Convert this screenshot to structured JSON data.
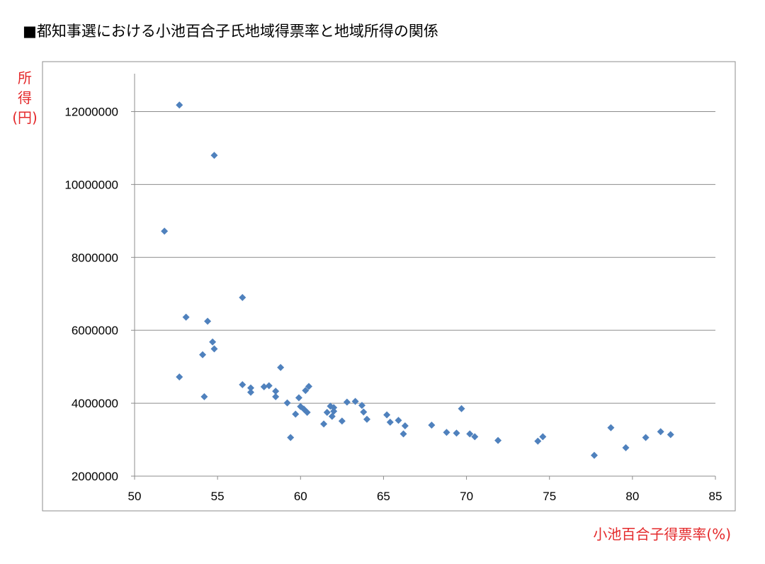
{
  "chart_data": {
    "type": "scatter",
    "title": "■都知事選における小池百合子氏地域得票率と地域所得の関係",
    "xlabel": "小池百合子得票率(%)",
    "ylabel": [
      "所",
      "得",
      "(円)"
    ],
    "xlim": [
      50,
      85
    ],
    "ylim": [
      2000000,
      13000000
    ],
    "xticks": [
      50,
      55,
      60,
      65,
      70,
      75,
      80,
      85
    ],
    "yticks": [
      2000000,
      4000000,
      6000000,
      8000000,
      10000000,
      12000000
    ],
    "grid": "horizontal",
    "legend": "none",
    "marker": "diamond",
    "color": "#4f81bd",
    "points": [
      [
        52.7,
        12180000
      ],
      [
        54.8,
        10800000
      ],
      [
        51.8,
        8720000
      ],
      [
        56.5,
        6900000
      ],
      [
        53.1,
        6360000
      ],
      [
        54.4,
        6250000
      ],
      [
        54.7,
        5680000
      ],
      [
        54.8,
        5490000
      ],
      [
        54.1,
        5330000
      ],
      [
        58.8,
        4980000
      ],
      [
        52.7,
        4720000
      ],
      [
        56.5,
        4510000
      ],
      [
        57.0,
        4420000
      ],
      [
        57.0,
        4300000
      ],
      [
        57.8,
        4450000
      ],
      [
        58.1,
        4480000
      ],
      [
        58.5,
        4330000
      ],
      [
        58.5,
        4180000
      ],
      [
        54.2,
        4180000
      ],
      [
        59.2,
        4010000
      ],
      [
        59.7,
        3700000
      ],
      [
        59.9,
        4150000
      ],
      [
        60.0,
        3910000
      ],
      [
        60.2,
        3840000
      ],
      [
        60.3,
        4350000
      ],
      [
        60.4,
        3750000
      ],
      [
        60.5,
        4460000
      ],
      [
        59.4,
        3060000
      ],
      [
        61.4,
        3430000
      ],
      [
        61.6,
        3750000
      ],
      [
        61.8,
        3920000
      ],
      [
        61.9,
        3640000
      ],
      [
        62.0,
        3780000
      ],
      [
        62.0,
        3880000
      ],
      [
        62.5,
        3510000
      ],
      [
        62.8,
        4030000
      ],
      [
        63.3,
        4050000
      ],
      [
        63.7,
        3940000
      ],
      [
        63.8,
        3760000
      ],
      [
        64.0,
        3560000
      ],
      [
        65.2,
        3680000
      ],
      [
        65.4,
        3480000
      ],
      [
        65.9,
        3530000
      ],
      [
        66.3,
        3380000
      ],
      [
        66.2,
        3160000
      ],
      [
        67.9,
        3400000
      ],
      [
        68.8,
        3200000
      ],
      [
        69.4,
        3180000
      ],
      [
        69.7,
        3850000
      ],
      [
        70.2,
        3160000
      ],
      [
        70.5,
        3080000
      ],
      [
        71.9,
        2980000
      ],
      [
        74.3,
        2960000
      ],
      [
        74.6,
        3080000
      ],
      [
        77.7,
        2570000
      ],
      [
        78.7,
        3330000
      ],
      [
        79.6,
        2780000
      ],
      [
        80.8,
        3060000
      ],
      [
        81.7,
        3220000
      ],
      [
        82.3,
        3140000
      ]
    ]
  }
}
